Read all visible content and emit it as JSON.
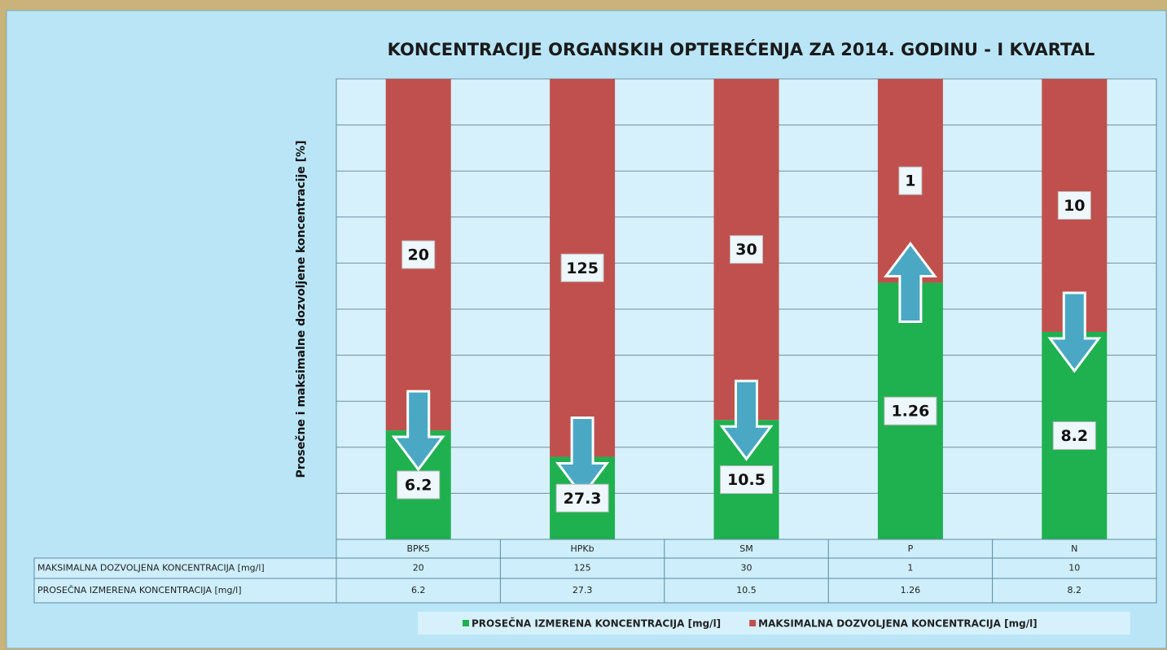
{
  "chart_data": {
    "type": "stacked_percent_bar",
    "title": "KONCENTRACIJE ORGANSKIH OPTEREĆENJA ZA 2014. GODINU - I KVARTAL",
    "y_label": "Prosečne i maksimalne dozvoljene koncentracije [%]",
    "categories": [
      "BPK5",
      "HPKb",
      "SM",
      "P",
      "N"
    ],
    "series": [
      {
        "name": "PROSEČNA IZMERENA KONCENTRACIJA [mg/l]",
        "color": "#1fb04f",
        "values": [
          6.2,
          27.3,
          10.5,
          1.26,
          8.2
        ]
      },
      {
        "name": "MAKSIMALNA DOZVOLJENA KONCENTRACIJA [mg/l]",
        "color": "#c0504d",
        "values": [
          20,
          125,
          30,
          1,
          10
        ]
      }
    ],
    "ylim": [
      0,
      100
    ],
    "yticks": [
      0,
      10,
      20,
      30,
      40,
      50,
      60,
      70,
      80,
      90,
      100
    ],
    "tick_labels": false,
    "grid": true,
    "data_table": true,
    "legend": "bottom"
  }
}
